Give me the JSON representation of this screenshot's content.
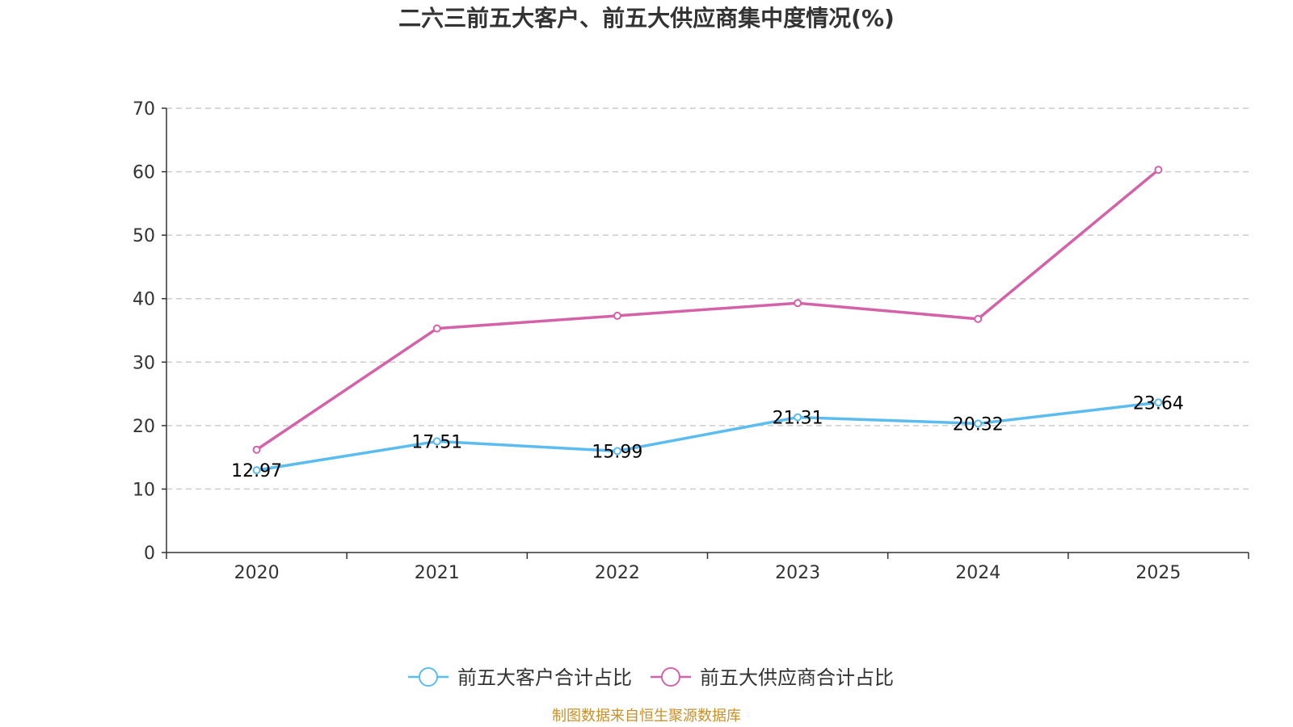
{
  "chart_data": {
    "type": "line",
    "title": "二六三前五大客户、前五大供应商集中度情况(%)",
    "categories": [
      "2020",
      "2021",
      "2022",
      "2023",
      "2024",
      "2025"
    ],
    "ylim": [
      0,
      70
    ],
    "yticks": [
      0,
      10,
      20,
      30,
      40,
      50,
      60,
      70
    ],
    "grid": true,
    "legend_position": "bottom-center",
    "series": [
      {
        "name": "前五大客户合计占比",
        "color": "#5bbcf0",
        "values": [
          12.97,
          17.51,
          15.99,
          21.31,
          20.32,
          23.64
        ],
        "labels": [
          "12.97",
          "17.51",
          "15.99",
          "21.31",
          "20.32",
          "23.64"
        ],
        "show_labels": true
      },
      {
        "name": "前五大供应商合计占比",
        "color": "#d462a8",
        "values": [
          16.2,
          35.3,
          37.3,
          39.3,
          36.8,
          60.3
        ],
        "show_labels": false
      }
    ],
    "source": "制图数据来自恒生聚源数据库"
  }
}
